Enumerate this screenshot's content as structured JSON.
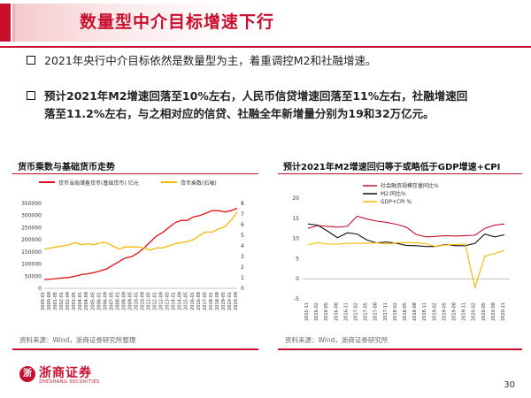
{
  "header": {
    "title": "数量型中介目标增速下行"
  },
  "bullets": {
    "b1": "2021年央行中介目标依然是数量型为主，着重调控M2和社融增速。",
    "b2_line1": "预计2021年M2增速回落至10%左右，人民币信贷增速回落至11%左右，社融增速回",
    "b2_line2": "落至11.2%左右，与之相对应的信贷、社融全年新增量分别为19和32万亿元。"
  },
  "chart_data": [
    {
      "type": "line",
      "title": "货币乘数与基础货币走势",
      "legend": [
        "货币当局储备货币(基础货币) 亿元",
        "货币乘数(右轴)"
      ],
      "colors": [
        "#e10f14",
        "#f5b800"
      ],
      "x": [
        "2000-01",
        "2000-09",
        "2001-05",
        "2002-01",
        "2002-09",
        "2003-05",
        "2004-01",
        "2004-09",
        "2005-05",
        "2006-01",
        "2006-09",
        "2007-05",
        "2008-01",
        "2008-09",
        "2009-05",
        "2010-01",
        "2010-09",
        "2011-05",
        "2012-01",
        "2012-09",
        "2013-05",
        "2014-01",
        "2014-09",
        "2015-05",
        "2016-01",
        "2016-09",
        "2017-05",
        "2018-01",
        "2018-09",
        "2019-05",
        "2020-01",
        "2020-09"
      ],
      "series": [
        {
          "name": "货币当局储备货币(基础货币) 亿元",
          "axis": "left",
          "values": [
            36000,
            38000,
            40000,
            43000,
            45000,
            50000,
            57000,
            60000,
            65000,
            72000,
            80000,
            95000,
            110000,
            125000,
            130000,
            145000,
            165000,
            190000,
            215000,
            230000,
            250000,
            270000,
            280000,
            280000,
            295000,
            300000,
            310000,
            320000,
            320000,
            315000,
            320000,
            330000
          ]
        },
        {
          "name": "货币乘数(右轴)",
          "axis": "right",
          "values": [
            3.7,
            3.8,
            3.9,
            4.0,
            4.1,
            4.3,
            4.1,
            4.2,
            4.1,
            4.3,
            4.3,
            4.0,
            3.7,
            3.9,
            3.9,
            3.9,
            3.8,
            3.6,
            3.8,
            3.8,
            4.0,
            4.2,
            4.3,
            4.4,
            4.6,
            5.0,
            5.3,
            5.3,
            5.6,
            5.8,
            6.4,
            7.2
          ]
        }
      ],
      "yleft": {
        "min": 0,
        "max": 350000,
        "ticks": [
          "0",
          "50000",
          "100000",
          "150000",
          "200000",
          "250000",
          "300000",
          "350000"
        ]
      },
      "yright": {
        "min": 0,
        "max": 8,
        "ticks": [
          "0",
          "1",
          "2",
          "3",
          "4",
          "5",
          "6",
          "7",
          "8"
        ]
      },
      "source": "资料来源：Wind，浙商证券研究所整理"
    },
    {
      "type": "line",
      "title": "预计2021年M2增速回归等于或略低于GDP增速+CPI",
      "legend": [
        "社会融资规模存量同比%",
        "M2:同比%",
        "GDP+CPI %"
      ],
      "colors": [
        "#c8102e",
        "#111111",
        "#f5b800"
      ],
      "x": [
        "2015-11",
        "2016-02",
        "2016-05",
        "2016-08",
        "2016-11",
        "2017-02",
        "2017-05",
        "2017-08",
        "2017-11",
        "2018-02",
        "2018-05",
        "2018-08",
        "2018-11",
        "2019-02",
        "2019-05",
        "2019-08",
        "2019-11",
        "2020-02",
        "2020-05",
        "2020-08",
        "2020-11"
      ],
      "series": [
        {
          "name": "社会融资规模存量同比%",
          "values": [
            12.5,
            13.2,
            13.0,
            12.8,
            13.0,
            15.5,
            14.8,
            14.3,
            14.0,
            13.5,
            12.8,
            11.0,
            10.4,
            10.5,
            10.7,
            10.6,
            10.7,
            10.8,
            12.5,
            13.3,
            13.6
          ]
        },
        {
          "name": "M2:同比%",
          "values": [
            13.6,
            13.3,
            11.8,
            10.2,
            11.4,
            11.1,
            9.6,
            8.9,
            9.1,
            8.8,
            8.3,
            8.2,
            8.0,
            8.0,
            8.5,
            8.2,
            8.2,
            8.8,
            11.1,
            10.4,
            10.9
          ]
        },
        {
          "name": "GDP+CPI %",
          "values": [
            8.4,
            9.0,
            8.6,
            8.6,
            8.8,
            8.8,
            8.8,
            8.9,
            8.6,
            8.9,
            9.0,
            8.9,
            8.7,
            8.0,
            8.4,
            8.5,
            8.6,
            -2.2,
            5.6,
            6.3,
            7.0
          ]
        }
      ],
      "yleft": {
        "min": -5,
        "max": 20,
        "ticks": [
          "-5",
          "0",
          "5",
          "10",
          "15",
          "20"
        ]
      },
      "source": "资料来源：Wind，浙商证券研究所"
    }
  ],
  "footer": {
    "logo_mark": "浙",
    "logo_text": "浙商证券",
    "logo_sub": "ZHESHANG SECURITIES",
    "page_number": "30"
  }
}
